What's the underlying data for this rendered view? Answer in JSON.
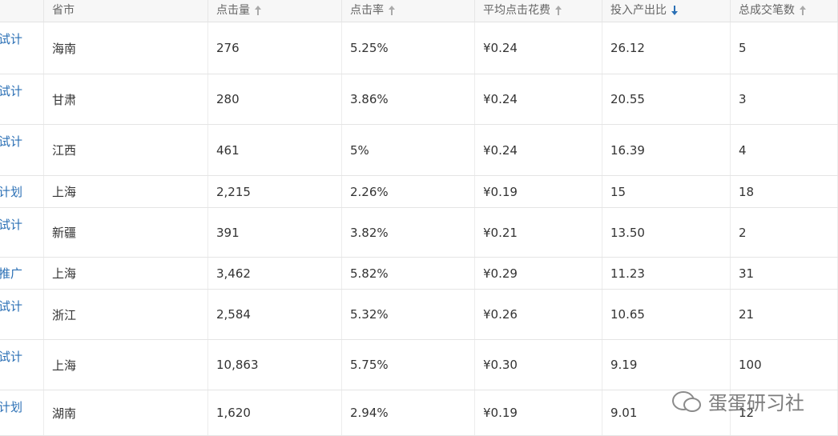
{
  "table": {
    "header": [
      "省市",
      "点击量",
      "点击率",
      "平均点击花费",
      "投入产出比",
      "总成交笔数"
    ],
    "rows": [
      {
        "plan": "试计",
        "cells": [
          "海南",
          "276",
          "5.25%",
          "¥0.24",
          "26.12",
          "5"
        ]
      },
      {
        "plan": "试计",
        "cells": [
          "甘肃",
          "280",
          "3.86%",
          "¥0.24",
          "20.55",
          "3"
        ]
      },
      {
        "plan": "试计",
        "cells": [
          "江西",
          "461",
          "5%",
          "¥0.24",
          "16.39",
          "4"
        ]
      },
      {
        "plan": "计划",
        "cells": [
          "上海",
          "2,215",
          "2.26%",
          "¥0.19",
          "15",
          "18"
        ]
      },
      {
        "plan": "试计",
        "cells": [
          "新疆",
          "391",
          "3.82%",
          "¥0.21",
          "13.50",
          "2"
        ]
      },
      {
        "plan": "推广",
        "cells": [
          "上海",
          "3,462",
          "5.82%",
          "¥0.29",
          "11.23",
          "31"
        ]
      },
      {
        "plan": "试计",
        "cells": [
          "浙江",
          "2,584",
          "5.32%",
          "¥0.26",
          "10.65",
          "21"
        ]
      },
      {
        "plan": "试计",
        "cells": [
          "上海",
          "10,863",
          "5.75%",
          "¥0.30",
          "9.19",
          "100"
        ]
      },
      {
        "plan": "计划",
        "cells": [
          "湖南",
          "1,620",
          "2.94%",
          "¥0.19",
          "9.01",
          "12"
        ]
      }
    ]
  },
  "watermark": "蛋蛋研习社"
}
